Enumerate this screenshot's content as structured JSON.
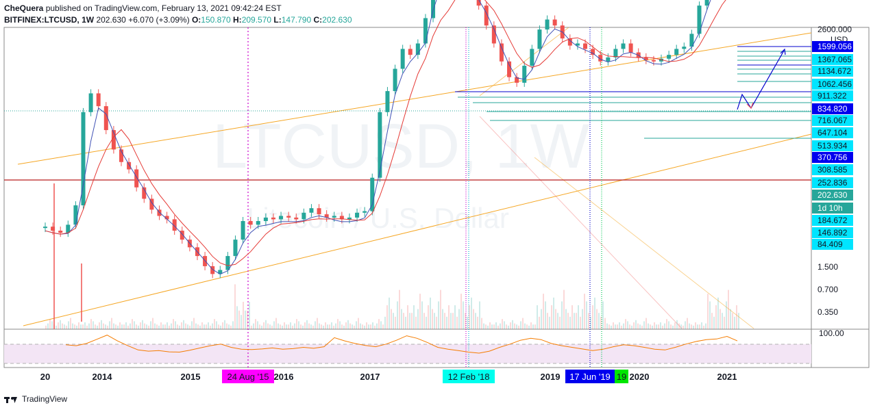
{
  "header": {
    "publisher": "CheQuera",
    "published_text": "published on TradingView.com, February 13, 2021 09:42:24 EST",
    "symbol": "BITFINEX:LTCUSD, 1W",
    "last": "202.630",
    "change": "+6.070 (+3.09%)",
    "o_label": "O:",
    "o": "150.870",
    "h_label": "H:",
    "h": "209.570",
    "l_label": "L:",
    "l": "147.790",
    "c_label": "C:",
    "c": "202.630"
  },
  "watermark": {
    "symbol": "LTCUSD, 1W",
    "name": "Litecoin / U.S. Dollar"
  },
  "footer": {
    "brand": "TradingView"
  },
  "colors": {
    "up": "#26a69a",
    "down": "#ef5350",
    "channel": "#f5a623",
    "support": "#b71c1c",
    "ma_fast": "#3f51b5",
    "ma_slow": "#e53935",
    "rsi": "#f57c00",
    "rsi_band": "#f3e5f5",
    "magenta": "#cc00cc",
    "blue": "#0000cc",
    "green": "#00c853",
    "cyan": "#00e5ff"
  },
  "chart_data": [
    {
      "type": "candlestick",
      "symbol": "BITFINEX:LTCUSD",
      "interval": "1W",
      "y_scale": "log",
      "ylim": [
        0.3,
        2600
      ],
      "currency": "USD",
      "y_ticks": [
        "2600.000",
        "1599.056",
        "1367.065",
        "1134.672",
        "1062.456",
        "911.322",
        "834.820",
        "716.067",
        "647.104",
        "513.934",
        "370.756",
        "308.585",
        "252.836",
        "202.630",
        "184.672",
        "146.892",
        "84.409",
        "1.500",
        "0.700",
        "0.350"
      ],
      "price_labels": [
        {
          "text": "1599.056",
          "bg": "#0000ee",
          "fg": "#ffffff"
        },
        {
          "text": "1367.065",
          "bg": "#00e5ff",
          "fg": "#131722"
        },
        {
          "text": "1134.672",
          "bg": "#00e5ff",
          "fg": "#131722"
        },
        {
          "text": "1062.456",
          "bg": "#00e5ff",
          "fg": "#131722"
        },
        {
          "text": "911.322",
          "bg": "#00e5ff",
          "fg": "#131722"
        },
        {
          "text": "834.820",
          "bg": "#0000ee",
          "fg": "#ffffff"
        },
        {
          "text": "716.067",
          "bg": "#00e5ff",
          "fg": "#131722"
        },
        {
          "text": "647.104",
          "bg": "#00e5ff",
          "fg": "#131722"
        },
        {
          "text": "513.934",
          "bg": "#00e5ff",
          "fg": "#131722"
        },
        {
          "text": "370.756",
          "bg": "#0000ee",
          "fg": "#ffffff"
        },
        {
          "text": "308.585",
          "bg": "#00e5ff",
          "fg": "#131722"
        },
        {
          "text": "252.836",
          "bg": "#00e5ff",
          "fg": "#131722"
        },
        {
          "text": "202.630",
          "bg": "#26a69a",
          "fg": "#ffffff"
        },
        {
          "text": "1d 10h",
          "bg": "#26a69a",
          "fg": "#ffffff"
        },
        {
          "text": "184.672",
          "bg": "#00e5ff",
          "fg": "#131722"
        },
        {
          "text": "146.892",
          "bg": "#00e5ff",
          "fg": "#131722"
        },
        {
          "text": "84.409",
          "bg": "#00e5ff",
          "fg": "#131722"
        }
      ],
      "x_ticks": [
        "20",
        "2014",
        "2015",
        "2016",
        "2017",
        "2019",
        "2020",
        "2021"
      ],
      "date_markers": [
        {
          "text": "24 Aug '15",
          "bg": "#ff00ff",
          "fg": "#131722"
        },
        {
          "text": "12 Feb '18",
          "bg": "#00ffee",
          "fg": "#131722"
        },
        {
          "text": "17 Jun '19",
          "bg": "#0000ee",
          "fg": "#ffffff"
        },
        {
          "text": "19",
          "bg": "#00e600",
          "fg": "#131722"
        }
      ],
      "close_series": [
        3.2,
        3.0,
        2.9,
        3.3,
        4.5,
        20,
        27,
        22,
        15,
        11,
        9,
        8,
        6,
        5,
        4.2,
        3.8,
        3.6,
        3.0,
        2.6,
        2.3,
        2.0,
        1.7,
        1.5,
        1.6,
        2.0,
        2.6,
        3.5,
        3.3,
        3.5,
        3.7,
        3.6,
        3.8,
        3.7,
        3.6,
        4.0,
        4.3,
        3.9,
        3.7,
        3.8,
        3.6,
        3.7,
        4.0,
        4.1,
        7,
        20,
        28,
        40,
        55,
        50,
        60,
        90,
        240,
        180,
        140,
        160,
        150,
        130,
        110,
        80,
        60,
        45,
        35,
        32,
        42,
        55,
        75,
        88,
        80,
        65,
        58,
        60,
        55,
        50,
        45,
        48,
        55,
        60,
        52,
        48,
        46,
        45,
        47,
        50,
        55,
        57,
        70,
        110,
        170,
        190,
        200,
        150,
        175
      ],
      "indicators": [
        "moving average (fast)",
        "moving average (slow)",
        "ascending channel",
        "RSI"
      ]
    },
    {
      "type": "line",
      "name": "RSI",
      "y_ticks": [
        "100.00"
      ],
      "ylim": [
        0,
        100
      ],
      "values": [
        58,
        55,
        62,
        75,
        88,
        70,
        55,
        42,
        38,
        40,
        36,
        35,
        41,
        48,
        55,
        60,
        50,
        44,
        43,
        45,
        48,
        44,
        46,
        50,
        47,
        52,
        80,
        70,
        62,
        56,
        52,
        60,
        72,
        86,
        78,
        65,
        50,
        44,
        40,
        35,
        32,
        38,
        50,
        60,
        72,
        78,
        74,
        62,
        55,
        50,
        45,
        40,
        44,
        52,
        58,
        55,
        50,
        44,
        42,
        50,
        60,
        68,
        74,
        76,
        84,
        70
      ]
    }
  ]
}
